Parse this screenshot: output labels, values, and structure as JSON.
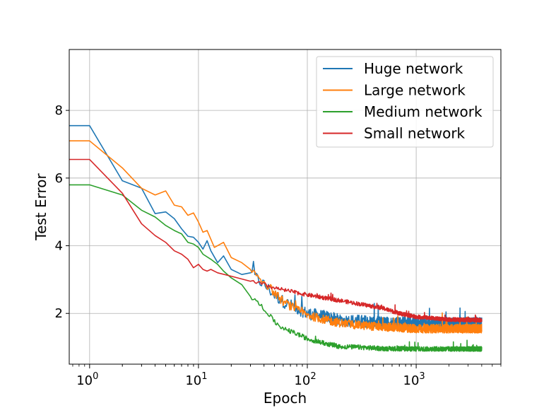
{
  "chart_data": {
    "type": "line",
    "title": "",
    "xlabel": "Epoch",
    "ylabel": "Test Error",
    "xscale": "log",
    "xlim": [
      0.65,
      6000
    ],
    "ylim": [
      0.5,
      9.8
    ],
    "x_ticks": [
      {
        "value": 1,
        "base": "10",
        "exp": "0"
      },
      {
        "value": 10,
        "base": "10",
        "exp": "1"
      },
      {
        "value": 100,
        "base": "10",
        "exp": "2"
      },
      {
        "value": 1000,
        "base": "10",
        "exp": "3"
      }
    ],
    "y_ticks": [
      {
        "value": 2,
        "label": "2"
      },
      {
        "value": 4,
        "label": "4"
      },
      {
        "value": 6,
        "label": "6"
      },
      {
        "value": 8,
        "label": "8"
      }
    ],
    "grid": true,
    "legend_position": "top-right",
    "series": [
      {
        "name": "Huge network",
        "color": "#1f77b4",
        "points": [
          [
            0.65,
            7.55
          ],
          [
            1,
            7.55
          ],
          [
            2,
            5.92
          ],
          [
            3,
            5.7
          ],
          [
            4,
            4.95
          ],
          [
            5,
            5.0
          ],
          [
            6,
            4.8
          ],
          [
            7,
            4.5
          ],
          [
            8,
            4.28
          ],
          [
            9,
            4.25
          ],
          [
            10,
            4.1
          ],
          [
            11,
            3.9
          ],
          [
            12,
            4.15
          ],
          [
            13,
            3.85
          ],
          [
            15,
            3.5
          ],
          [
            17,
            3.7
          ],
          [
            20,
            3.3
          ],
          [
            25,
            3.15
          ],
          [
            30,
            3.2
          ],
          [
            40,
            2.85
          ],
          [
            50,
            2.55
          ],
          [
            60,
            2.35
          ],
          [
            80,
            2.15
          ],
          [
            100,
            2.0
          ],
          [
            150,
            1.9
          ],
          [
            200,
            1.8
          ],
          [
            300,
            1.78
          ],
          [
            500,
            1.72
          ],
          [
            1000,
            1.72
          ],
          [
            2000,
            1.7
          ],
          [
            4000,
            1.7
          ]
        ],
        "noise": 0.18
      },
      {
        "name": "Large network",
        "color": "#ff7f0e",
        "points": [
          [
            0.65,
            7.1
          ],
          [
            1,
            7.1
          ],
          [
            2,
            6.3
          ],
          [
            3,
            5.7
          ],
          [
            4,
            5.5
          ],
          [
            5,
            5.62
          ],
          [
            6,
            5.2
          ],
          [
            7,
            5.15
          ],
          [
            8,
            4.9
          ],
          [
            9,
            4.97
          ],
          [
            10,
            4.7
          ],
          [
            11,
            4.4
          ],
          [
            12,
            4.45
          ],
          [
            14,
            3.95
          ],
          [
            17,
            4.1
          ],
          [
            20,
            3.65
          ],
          [
            25,
            3.5
          ],
          [
            30,
            3.3
          ],
          [
            40,
            2.95
          ],
          [
            50,
            2.6
          ],
          [
            60,
            2.35
          ],
          [
            80,
            2.1
          ],
          [
            100,
            1.95
          ],
          [
            150,
            1.8
          ],
          [
            200,
            1.72
          ],
          [
            300,
            1.65
          ],
          [
            500,
            1.6
          ],
          [
            1000,
            1.55
          ],
          [
            2000,
            1.55
          ],
          [
            4000,
            1.55
          ]
        ],
        "noise": 0.13
      },
      {
        "name": "Medium network",
        "color": "#2ca02c",
        "points": [
          [
            0.65,
            5.8
          ],
          [
            1,
            5.8
          ],
          [
            2,
            5.5
          ],
          [
            3,
            5.05
          ],
          [
            4,
            4.85
          ],
          [
            5,
            4.6
          ],
          [
            6,
            4.45
          ],
          [
            7,
            4.35
          ],
          [
            8,
            4.1
          ],
          [
            9,
            4.05
          ],
          [
            10,
            3.95
          ],
          [
            11,
            3.75
          ],
          [
            13,
            3.6
          ],
          [
            15,
            3.45
          ],
          [
            17,
            3.25
          ],
          [
            20,
            3.05
          ],
          [
            25,
            2.85
          ],
          [
            30,
            2.5
          ],
          [
            40,
            2.15
          ],
          [
            50,
            1.75
          ],
          [
            60,
            1.55
          ],
          [
            80,
            1.4
          ],
          [
            100,
            1.25
          ],
          [
            150,
            1.1
          ],
          [
            200,
            1.02
          ],
          [
            300,
            1.0
          ],
          [
            500,
            0.96
          ],
          [
            1000,
            0.95
          ],
          [
            2000,
            0.95
          ],
          [
            4000,
            0.95
          ]
        ],
        "noise": 0.07
      },
      {
        "name": "Small network",
        "color": "#d62728",
        "points": [
          [
            0.65,
            6.55
          ],
          [
            1,
            6.55
          ],
          [
            2,
            5.55
          ],
          [
            3,
            4.65
          ],
          [
            4,
            4.3
          ],
          [
            5,
            4.1
          ],
          [
            6,
            3.85
          ],
          [
            7,
            3.75
          ],
          [
            8,
            3.6
          ],
          [
            9,
            3.35
          ],
          [
            10,
            3.45
          ],
          [
            11,
            3.3
          ],
          [
            12,
            3.25
          ],
          [
            13,
            3.3
          ],
          [
            15,
            3.2
          ],
          [
            20,
            3.1
          ],
          [
            30,
            2.95
          ],
          [
            40,
            2.85
          ],
          [
            50,
            2.75
          ],
          [
            70,
            2.65
          ],
          [
            100,
            2.55
          ],
          [
            150,
            2.45
          ],
          [
            200,
            2.38
          ],
          [
            300,
            2.28
          ],
          [
            500,
            2.15
          ],
          [
            700,
            2.0
          ],
          [
            1000,
            1.9
          ],
          [
            2000,
            1.82
          ],
          [
            4000,
            1.8
          ]
        ],
        "noise": 0.06
      }
    ]
  }
}
